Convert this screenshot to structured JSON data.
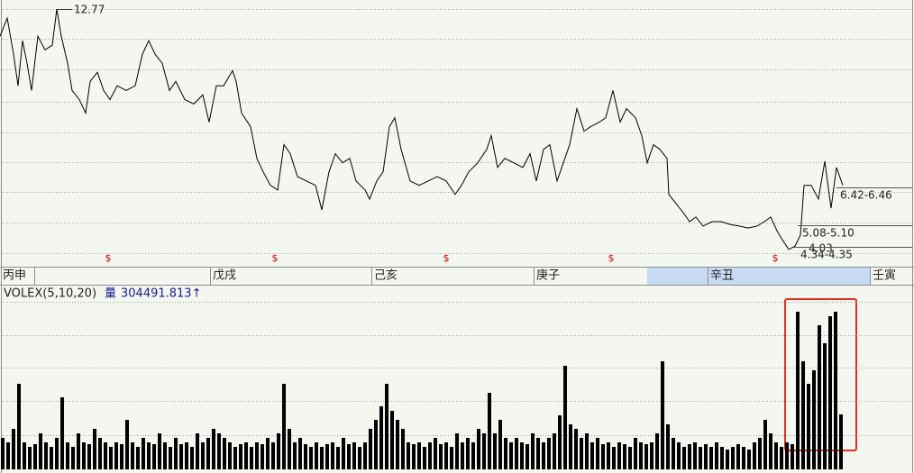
{
  "chart_data": [
    {
      "type": "line",
      "xlim": [
        0,
        1014
      ],
      "ylim": [
        3.6,
        13.1
      ],
      "xticks": [
        {
          "value": 0,
          "label": "丙申"
        },
        {
          "value": 233,
          "label": "戊戌"
        },
        {
          "value": 412,
          "label": "己亥"
        },
        {
          "value": 592,
          "label": "庚子"
        },
        {
          "value": 785,
          "label": "辛丑"
        },
        {
          "value": 965,
          "label": "壬寅"
        }
      ],
      "series": [
        {
          "color": "#000000",
          "x": [
            0,
            8,
            15,
            20,
            25,
            30,
            35,
            42,
            50,
            58,
            63,
            68,
            75,
            80,
            88,
            95,
            100,
            108,
            115,
            122,
            130,
            140,
            150,
            158,
            165,
            172,
            180,
            188,
            195,
            205,
            215,
            225,
            232,
            240,
            248,
            258,
            262,
            268,
            278,
            285,
            292,
            300,
            308,
            315,
            322,
            330,
            340,
            350,
            357,
            365,
            372,
            380,
            388,
            395,
            405,
            410,
            418,
            425,
            432,
            438,
            445,
            455,
            465,
            475,
            485,
            495,
            505,
            512,
            520,
            530,
            540,
            545,
            552,
            560,
            570,
            580,
            588,
            595,
            603,
            610,
            618,
            625,
            632,
            640,
            648,
            655,
            665,
            672,
            680,
            688,
            695,
            705,
            712,
            718,
            725,
            732,
            740,
            742,
            750,
            758,
            765,
            772,
            780,
            790,
            800,
            810,
            820,
            830,
            840,
            848,
            855,
            862,
            868,
            875,
            882,
            888,
            892,
            900,
            908,
            915,
            922,
            928,
            935
          ],
          "values": [
            11.78,
            12.44,
            11.13,
            9.98,
            11.62,
            10.8,
            9.81,
            11.78,
            11.29,
            11.46,
            12.77,
            11.78,
            10.8,
            9.81,
            9.48,
            8.99,
            10.14,
            10.47,
            9.81,
            9.48,
            9.98,
            9.81,
            9.98,
            11.13,
            11.62,
            11.13,
            10.8,
            9.81,
            10.14,
            9.48,
            9.32,
            9.65,
            8.66,
            9.98,
            9.98,
            10.53,
            10.14,
            8.99,
            8.49,
            7.34,
            6.85,
            6.36,
            6.19,
            7.84,
            7.51,
            6.68,
            6.52,
            6.36,
            5.47,
            6.85,
            7.51,
            7.18,
            7.34,
            6.52,
            6.19,
            5.86,
            6.52,
            6.85,
            8.49,
            8.82,
            7.67,
            6.52,
            6.36,
            6.52,
            6.68,
            6.52,
            6.03,
            6.36,
            6.85,
            7.18,
            7.67,
            8.17,
            7.01,
            7.34,
            7.18,
            7.01,
            7.51,
            6.52,
            7.67,
            7.84,
            6.52,
            7.18,
            7.84,
            9.15,
            8.33,
            8.49,
            8.66,
            8.82,
            9.81,
            8.66,
            9.15,
            8.82,
            8.17,
            7.18,
            7.84,
            7.67,
            7.34,
            6.03,
            5.7,
            5.37,
            5.04,
            5.21,
            4.88,
            5.04,
            5.04,
            4.94,
            4.88,
            4.81,
            4.88,
            5.04,
            5.21,
            4.71,
            4.38,
            4.03,
            4.15,
            4.55,
            6.36,
            6.36,
            5.86,
            7.24,
            5.53,
            7.01,
            6.36
          ]
        }
      ],
      "annotations": [
        "12.77",
        "6.42-6.46",
        "5.08-5.10",
        "4.03",
        "4.34-4.35"
      ],
      "markers": {
        "label": "$",
        "color": "#d00000",
        "x": [
          120,
          305,
          495,
          678,
          860
        ]
      }
    },
    {
      "type": "bar",
      "title": "VOLEX(5,10,20)",
      "indicator": "量",
      "indicator_value": "304491.813↑",
      "xlim": [
        0,
        1014
      ],
      "ylim": [
        0,
        1015000
      ],
      "series": [
        {
          "color": "#000000",
          "x": [
            3,
            9,
            15,
            21,
            27,
            33,
            39,
            45,
            51,
            57,
            63,
            69,
            75,
            81,
            87,
            93,
            99,
            105,
            111,
            117,
            123,
            129,
            135,
            141,
            147,
            153,
            159,
            165,
            171,
            177,
            183,
            189,
            195,
            201,
            207,
            213,
            219,
            225,
            231,
            237,
            243,
            249,
            255,
            261,
            267,
            273,
            279,
            285,
            291,
            297,
            303,
            309,
            315,
            321,
            327,
            333,
            339,
            345,
            351,
            357,
            363,
            369,
            375,
            381,
            387,
            393,
            399,
            405,
            411,
            417,
            423,
            429,
            435,
            441,
            447,
            453,
            459,
            465,
            471,
            477,
            483,
            489,
            495,
            501,
            507,
            513,
            519,
            525,
            531,
            537,
            543,
            549,
            555,
            561,
            567,
            573,
            579,
            585,
            591,
            597,
            603,
            609,
            615,
            621,
            627,
            633,
            639,
            645,
            651,
            657,
            663,
            669,
            675,
            681,
            687,
            693,
            699,
            705,
            711,
            717,
            723,
            729,
            735,
            741,
            747,
            753,
            759,
            765,
            771,
            777,
            783,
            789,
            795,
            801,
            807,
            813,
            819,
            825,
            831,
            837,
            843,
            849,
            855,
            861,
            867,
            873,
            879,
            885,
            891,
            897,
            903,
            909,
            915,
            921,
            927,
            933
          ],
          "values": [
            175000,
            150000,
            225000,
            475000,
            150000,
            125000,
            140000,
            200000,
            150000,
            125000,
            175000,
            400000,
            150000,
            125000,
            200000,
            150000,
            140000,
            225000,
            175000,
            150000,
            125000,
            150000,
            140000,
            275000,
            150000,
            125000,
            175000,
            150000,
            140000,
            200000,
            150000,
            125000,
            175000,
            140000,
            150000,
            125000,
            200000,
            150000,
            175000,
            225000,
            200000,
            175000,
            150000,
            125000,
            140000,
            150000,
            125000,
            150000,
            140000,
            175000,
            150000,
            200000,
            475000,
            225000,
            150000,
            175000,
            140000,
            125000,
            150000,
            125000,
            140000,
            150000,
            125000,
            175000,
            140000,
            150000,
            125000,
            150000,
            225000,
            275000,
            350000,
            475000,
            325000,
            275000,
            225000,
            150000,
            140000,
            150000,
            125000,
            150000,
            175000,
            140000,
            150000,
            125000,
            200000,
            150000,
            175000,
            150000,
            225000,
            200000,
            425000,
            200000,
            275000,
            175000,
            150000,
            175000,
            150000,
            140000,
            200000,
            175000,
            150000,
            175000,
            200000,
            300000,
            575000,
            250000,
            225000,
            175000,
            200000,
            150000,
            175000,
            140000,
            150000,
            125000,
            150000,
            140000,
            125000,
            175000,
            150000,
            140000,
            150000,
            200000,
            600000,
            250000,
            175000,
            150000,
            125000,
            140000,
            150000,
            125000,
            140000,
            125000,
            150000,
            125000,
            110000,
            125000,
            140000,
            125000,
            110000,
            150000,
            175000,
            275000,
            200000,
            150000,
            125000,
            150000,
            140000,
            875000,
            600000,
            475000,
            550000,
            800000,
            700000,
            850000,
            875000,
            305000
          ]
        }
      ]
    }
  ]
}
